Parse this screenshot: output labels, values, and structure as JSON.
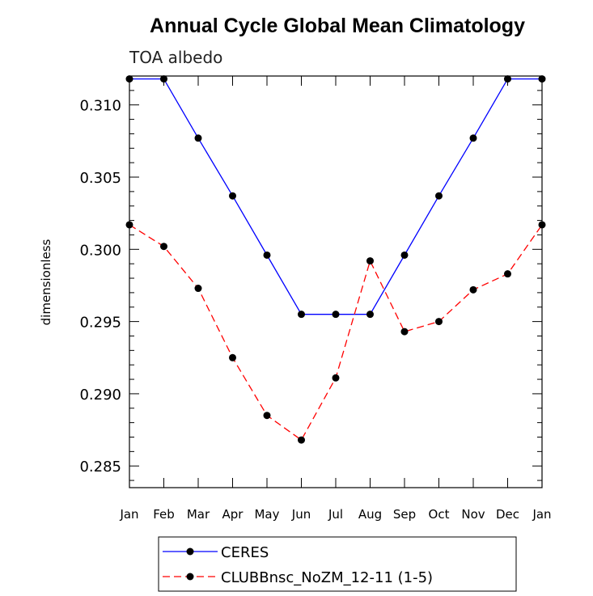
{
  "chart_data": {
    "type": "line",
    "title": "Annual Cycle Global Mean Climatology",
    "subtitle": "TOA albedo",
    "xlabel": "",
    "ylabel": "dimensionless",
    "categories": [
      "Jan",
      "Feb",
      "Mar",
      "Apr",
      "May",
      "Jun",
      "Jul",
      "Aug",
      "Sep",
      "Oct",
      "Nov",
      "Dec",
      "Jan"
    ],
    "yticks": [
      "0.285",
      "0.290",
      "0.295",
      "0.300",
      "0.305",
      "0.310"
    ],
    "ylim": [
      0.2835,
      0.312
    ],
    "grid": false,
    "legend_position": "bottom",
    "series": [
      {
        "name": "CERES",
        "color": "#0000ff",
        "line_style": "solid",
        "marker": "filled-circle",
        "values": [
          0.3118,
          0.3118,
          0.3077,
          0.3037,
          0.2996,
          0.2955,
          0.2955,
          0.2955,
          0.2996,
          0.3037,
          0.3077,
          0.3118,
          0.3118
        ]
      },
      {
        "name": "CLUBBnsc_NoZM_12-11 (1-5)",
        "color": "#ff0000",
        "line_style": "dashed",
        "marker": "filled-circle",
        "values": [
          0.3017,
          0.3002,
          0.2973,
          0.2925,
          0.2885,
          0.2868,
          0.2911,
          0.2992,
          0.2943,
          0.295,
          0.2972,
          0.2983,
          0.3017
        ]
      }
    ]
  }
}
